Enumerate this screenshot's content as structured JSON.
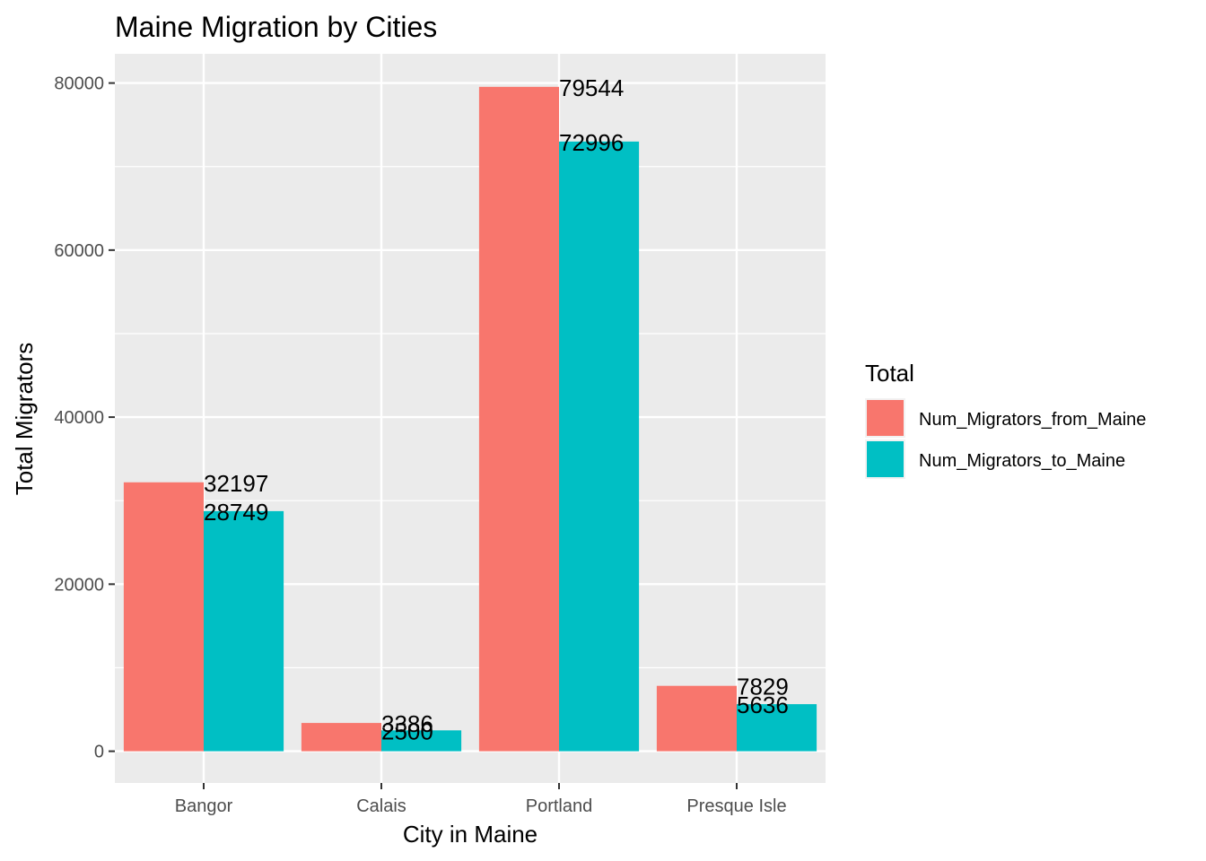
{
  "chart_data": {
    "type": "bar",
    "title": "Maine Migration by Cities",
    "xlabel": "City in Maine",
    "ylabel": "Total Migrators",
    "categories": [
      "Bangor",
      "Calais",
      "Portland",
      "Presque Isle"
    ],
    "series": [
      {
        "name": "Num_Migrators_from_Maine",
        "values": [
          32197,
          3386,
          79544,
          7829
        ],
        "color": "#F8766D"
      },
      {
        "name": "Num_Migrators_to_Maine",
        "values": [
          28749,
          2500,
          72996,
          5636
        ],
        "color": "#00BFC4"
      }
    ],
    "ylim": [
      -3800,
      83500
    ],
    "yticks": [
      0,
      20000,
      40000,
      60000,
      80000
    ],
    "grid": true,
    "legend": {
      "title": "Total",
      "position": "right"
    },
    "panel_background": "#EBEBEB",
    "grid_color": "#FFFFFF"
  }
}
